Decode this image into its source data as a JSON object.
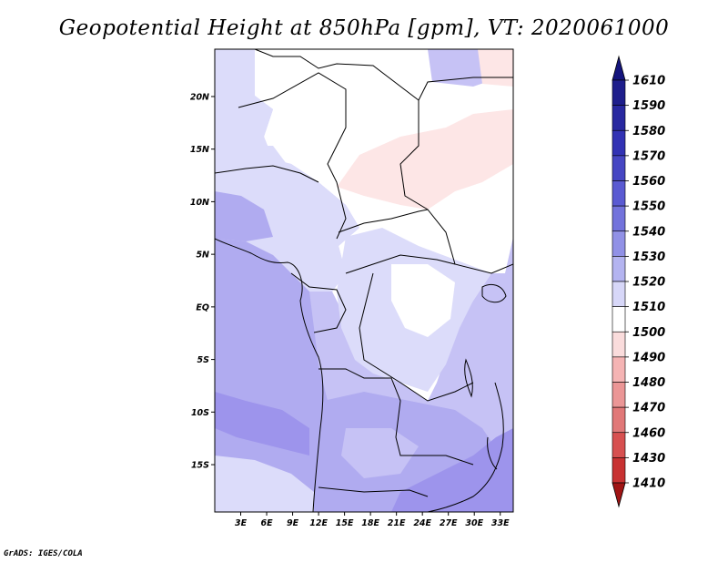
{
  "title": "Geopotential Height at 850hPa [gpm], VT: 2020061000",
  "footer": "GrADS: IGES/COLA",
  "map": {
    "variable": "Geopotential Height",
    "level": "850hPa",
    "units": "gpm",
    "valid_time": "2020061000",
    "lat_range": [
      -19.5,
      24.5
    ],
    "lon_range": [
      0,
      34.5
    ],
    "lat_ticks": [
      {
        "value": 20,
        "label": "20N"
      },
      {
        "value": 15,
        "label": "15N"
      },
      {
        "value": 10,
        "label": "10N"
      },
      {
        "value": 5,
        "label": "5N"
      },
      {
        "value": 0,
        "label": "EQ"
      },
      {
        "value": -5,
        "label": "5S"
      },
      {
        "value": -10,
        "label": "10S"
      },
      {
        "value": -15,
        "label": "15S"
      }
    ],
    "lon_ticks": [
      {
        "value": 3,
        "label": "3E"
      },
      {
        "value": 6,
        "label": "6E"
      },
      {
        "value": 9,
        "label": "9E"
      },
      {
        "value": 12,
        "label": "12E"
      },
      {
        "value": 15,
        "label": "15E"
      },
      {
        "value": 18,
        "label": "18E"
      },
      {
        "value": 21,
        "label": "21E"
      },
      {
        "value": 24,
        "label": "24E"
      },
      {
        "value": 27,
        "label": "27E"
      },
      {
        "value": 30,
        "label": "30E"
      },
      {
        "value": 33,
        "label": "33E"
      }
    ]
  },
  "colorbar": {
    "levels": [
      {
        "label": "1610",
        "color": "#1e1e8c"
      },
      {
        "label": "1590",
        "color": "#2828a0"
      },
      {
        "label": "1580",
        "color": "#3232b4"
      },
      {
        "label": "1570",
        "color": "#4646c3"
      },
      {
        "label": "1560",
        "color": "#5a5ad2"
      },
      {
        "label": "1550",
        "color": "#7373dc"
      },
      {
        "label": "1540",
        "color": "#9191e6"
      },
      {
        "label": "1530",
        "color": "#b4b4f0"
      },
      {
        "label": "1520",
        "color": "#d7d7f8"
      },
      {
        "label": "1510",
        "color": "#ffffff"
      },
      {
        "label": "1500",
        "color": "#fadcdc"
      },
      {
        "label": "1490",
        "color": "#f5b4b4"
      },
      {
        "label": "1480",
        "color": "#eb9696"
      },
      {
        "label": "1470",
        "color": "#e17878"
      },
      {
        "label": "1460",
        "color": "#d75050"
      },
      {
        "label": "1430",
        "color": "#c83232"
      },
      {
        "label": "1410",
        "color": "#b41e1e"
      }
    ],
    "top_color": "#14147d",
    "bottom_color": "#a01414"
  },
  "fill_colors": {
    "c1550": "#9d94ec",
    "c1540": "#b0abf0",
    "c1530": "#c6c2f5",
    "c1520": "#dcdcfa",
    "c1510": "#ffffff",
    "c1500": "#fde6e6"
  }
}
